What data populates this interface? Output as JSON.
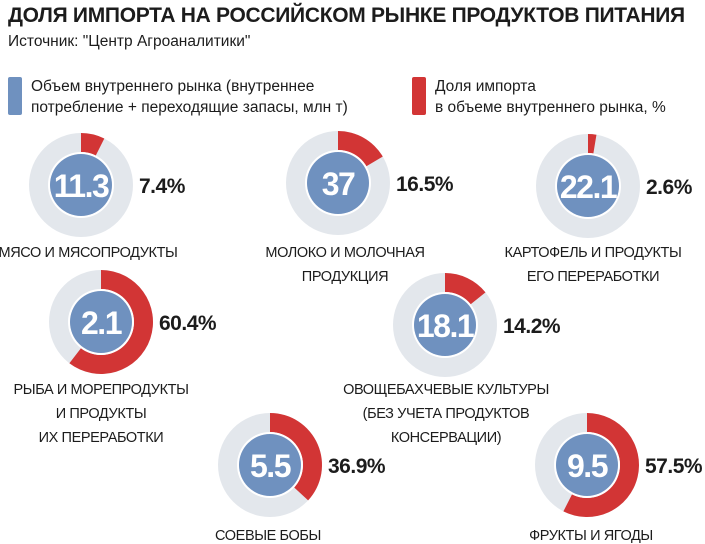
{
  "header": {
    "title": "ДОЛЯ ИМПОРТА НА РОССИЙСКОМ РЫНКЕ ПРОДУКТОВ ПИТАНИЯ",
    "source": "Источник: \"Центр Агроаналитики\""
  },
  "legend": {
    "volume": "Объем внутреннего рынка (внутреннее\nпотребление + переходящие запасы, млн т)",
    "import": "Доля импорта\nв объеме внутреннего рынка, %"
  },
  "colors": {
    "volume": "#6f91bf",
    "import": "#d23535",
    "ring": "#e3e7ec"
  },
  "chart_data": {
    "type": "pie",
    "title": "ДОЛЯ ИМПОРТА НА РОССИЙСКОМ РЫНКЕ ПРОДУКТОВ ПИТАНИЯ",
    "units": {
      "volume": "млн т",
      "import_share": "%"
    },
    "items": [
      {
        "category": [
          "МЯСО И МЯСОПРОДУКТЫ"
        ],
        "volume": "11.3",
        "import_share": 7.4,
        "import_label": "7.4%"
      },
      {
        "category": [
          "МОЛОКО И МОЛОЧНАЯ",
          "ПРОДУКЦИЯ"
        ],
        "volume": "37",
        "import_share": 16.5,
        "import_label": "16.5%"
      },
      {
        "category": [
          "КАРТОФЕЛЬ И ПРОДУКТЫ",
          "ЕГО ПЕРЕРАБОТКИ"
        ],
        "volume": "22.1",
        "import_share": 2.6,
        "import_label": "2.6%"
      },
      {
        "category": [
          "РЫБА И МОРЕПРОДУКТЫ",
          "И ПРОДУКТЫ",
          "ИХ ПЕРЕРАБОТКИ"
        ],
        "volume": "2.1",
        "import_share": 60.4,
        "import_label": "60.4%"
      },
      {
        "category": [
          "ОВОЩЕБАХЧЕВЫЕ КУЛЬТУРЫ",
          "(БЕЗ УЧЕТА ПРОДУКТОВ",
          "КОНСЕРВАЦИИ)"
        ],
        "volume": "18.1",
        "import_share": 14.2,
        "import_label": "14.2%"
      },
      {
        "category": [
          "СОЕВЫЕ БОБЫ"
        ],
        "volume": "5.5",
        "import_share": 36.9,
        "import_label": "36.9%"
      },
      {
        "category": [
          "ФРУКТЫ И ЯГОДЫ"
        ],
        "volume": "9.5",
        "import_share": 57.5,
        "import_label": "57.5%"
      }
    ]
  }
}
